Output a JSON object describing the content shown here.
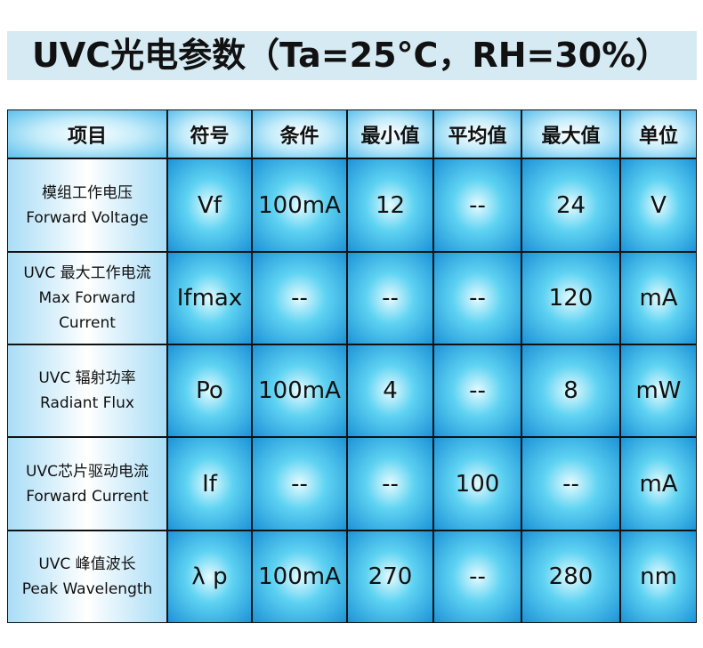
{
  "title": "UVC光电参数（Ta=25°C，RH=30%）",
  "table": {
    "headers": [
      "项目",
      "符号",
      "条件",
      "最小值",
      "平均值",
      "最大值",
      "单位"
    ],
    "rows": [
      [
        [
          "模组工作电压",
          "Forward Voltage"
        ],
        "Vf",
        "100mA",
        "12",
        "--",
        "24",
        "V"
      ],
      [
        [
          "UVC 最大工作电流",
          "Max Forward",
          "Current"
        ],
        "Ifmax",
        "--",
        "--",
        "--",
        "120",
        "mA"
      ],
      [
        [
          "UVC 辐射功率",
          "Radiant Flux"
        ],
        "Po",
        "100mA",
        "4",
        "--",
        "8",
        "mW"
      ],
      [
        [
          "UVC芯片驱动电流",
          "Forward Current"
        ],
        "If",
        "--",
        "--",
        "100",
        "--",
        "mA"
      ],
      [
        [
          "UVC 峰值波长",
          "Peak Wavelength"
        ],
        "λ p",
        "100mA",
        "270",
        "--",
        "280",
        "nm"
      ]
    ]
  }
}
